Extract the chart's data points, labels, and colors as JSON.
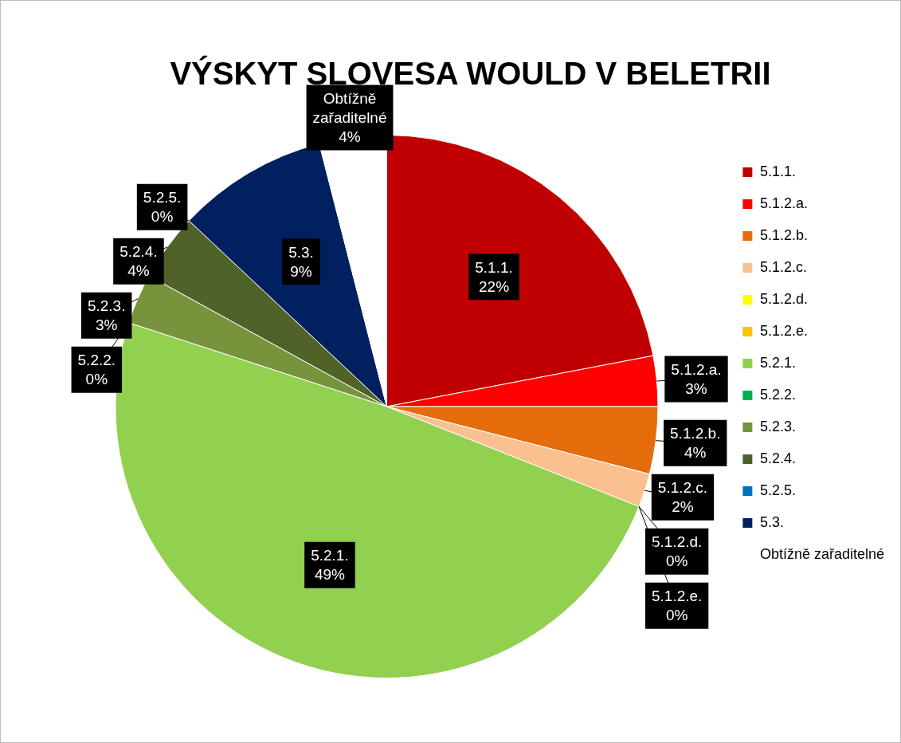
{
  "chart_data": {
    "type": "pie",
    "title": "VÝSKYT SLOVESA WOULD V BELETRII",
    "categories": [
      "5.1.1.",
      "5.1.2.a.",
      "5.1.2.b.",
      "5.1.2.c.",
      "5.1.2.d.",
      "5.1.2.e.",
      "5.2.1.",
      "5.2.2.",
      "5.2.3.",
      "5.2.4.",
      "5.2.5.",
      "5.3.",
      "Obtížně zařaditelné"
    ],
    "values": [
      22,
      3,
      4,
      2,
      0,
      0,
      49,
      0,
      3,
      4,
      0,
      9,
      4
    ],
    "colors": [
      "#c00000",
      "#ff0000",
      "#e46c0a",
      "#fac090",
      "#ffff00",
      "#ffc000",
      "#92d050",
      "#00b050",
      "#77933c",
      "#4f6228",
      "#0070c0",
      "#002060",
      "#ffffff"
    ],
    "value_labels": [
      "22%",
      "3%",
      "4%",
      "2%",
      "0%",
      "0%",
      "49%",
      "0%",
      "3%",
      "4%",
      "0%",
      "9%",
      "4%"
    ],
    "legend": "right"
  }
}
